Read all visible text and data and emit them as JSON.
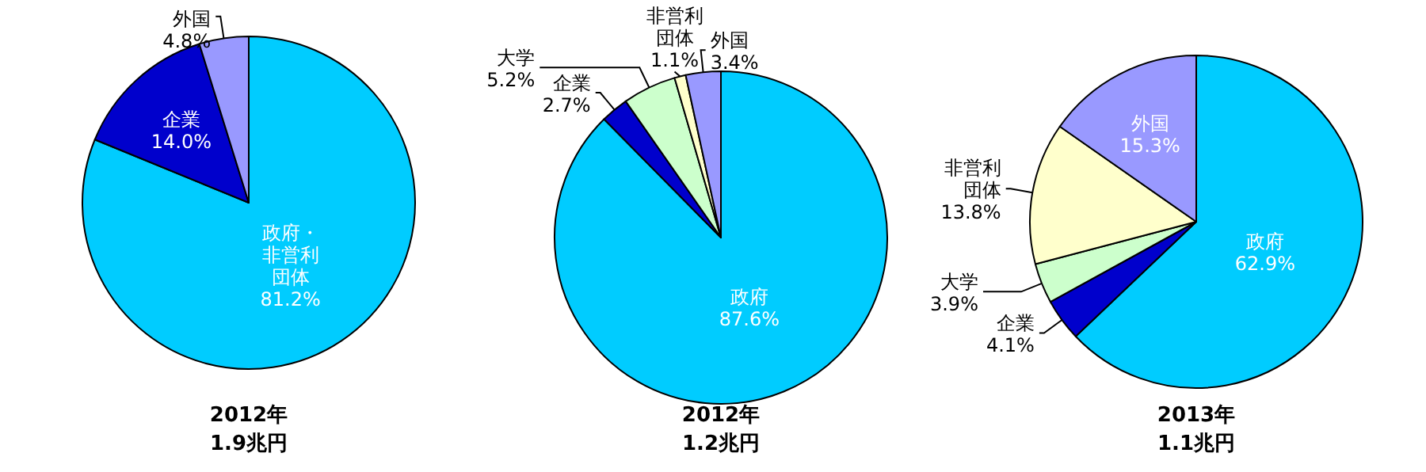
{
  "chart_data": [
    {
      "type": "pie",
      "title": "2012年",
      "subtitle": "1.9兆円",
      "categories": [
        "政府・非営利団体",
        "企業",
        "外国"
      ],
      "values": [
        81.2,
        14.0,
        4.8
      ],
      "value_labels": [
        "81.2%",
        "14.0%",
        "4.8%"
      ],
      "colors": [
        "#00ccff",
        "#0000cc",
        "#9999ff"
      ]
    },
    {
      "type": "pie",
      "title": "2012年",
      "subtitle": "1.2兆円",
      "categories": [
        "政府",
        "企業",
        "大学",
        "非営利団体",
        "外国"
      ],
      "values": [
        87.6,
        2.7,
        5.2,
        1.1,
        3.4
      ],
      "value_labels": [
        "87.6%",
        "2.7%",
        "5.2%",
        "1.1%",
        "3.4%"
      ],
      "colors": [
        "#00ccff",
        "#0000cc",
        "#ccffcc",
        "#ffffcc",
        "#9999ff"
      ]
    },
    {
      "type": "pie",
      "title": "2013年",
      "subtitle": "1.1兆円",
      "categories": [
        "政府",
        "企業",
        "大学",
        "非営利団体",
        "外国"
      ],
      "values": [
        62.9,
        4.1,
        3.9,
        13.8,
        15.3
      ],
      "value_labels": [
        "62.9%",
        "4.1%",
        "3.9%",
        "13.8%",
        "15.3%"
      ],
      "colors": [
        "#00ccff",
        "#0000cc",
        "#ccffcc",
        "#ffffcc",
        "#9999ff"
      ]
    }
  ]
}
